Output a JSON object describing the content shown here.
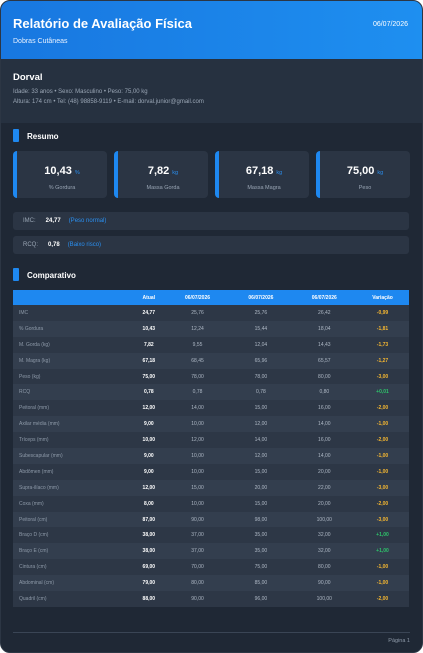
{
  "header": {
    "title": "Relatório de Avaliação Física",
    "date": "06/07/2026",
    "subtitle": "Dobras Cutâneas"
  },
  "patient": {
    "name": "Dorval",
    "line1": "Idade: 33 anos  •  Sexo: Masculino  •  Peso: 75,00 kg",
    "line2": "Altura: 174 cm  •  Tel: (48) 98858-9119  •  E-mail: dorval.junior@gmail.com"
  },
  "summary": {
    "title": "Resumo",
    "cards": [
      {
        "value": "10,43",
        "unit": "%",
        "label": "% Gordura"
      },
      {
        "value": "7,82",
        "unit": "kg",
        "label": "Massa Gorda"
      },
      {
        "value": "67,18",
        "unit": "kg",
        "label": "Massa Magra"
      },
      {
        "value": "75,00",
        "unit": "kg",
        "label": "Peso"
      }
    ],
    "indices": [
      {
        "label": "IMC:",
        "value": "24,77",
        "note": "(Peso normal)"
      },
      {
        "label": "RCQ:",
        "value": "0,78",
        "note": "(Baixo risco)"
      }
    ]
  },
  "table": {
    "title": "Comparativo",
    "header": [
      "",
      "Atual",
      "06/07/2026",
      "06/07/2026",
      "06/07/2026",
      "Variação"
    ],
    "rows": [
      [
        "IMC",
        "24,77",
        "25,76",
        "25,76",
        "26,42",
        "-0,99"
      ],
      [
        "% Gordura",
        "10,43",
        "12,24",
        "15,44",
        "18,04",
        "-1,81"
      ],
      [
        "M. Gorda (kg)",
        "7,82",
        "9,55",
        "12,04",
        "14,43",
        "-1,73"
      ],
      [
        "M. Magra (kg)",
        "67,18",
        "68,45",
        "65,96",
        "65,57",
        "-1,27"
      ],
      [
        "Peso (kg)",
        "75,00",
        "78,00",
        "78,00",
        "80,00",
        "-3,00"
      ],
      [
        "RCQ",
        "0,78",
        "0,78",
        "0,78",
        "0,80",
        "+0,01"
      ],
      [
        "Peitoral (mm)",
        "12,00",
        "14,00",
        "15,00",
        "16,00",
        "-2,00"
      ],
      [
        "Axilar média (mm)",
        "9,00",
        "10,00",
        "12,00",
        "14,00",
        "-1,00"
      ],
      [
        "Tríceps (mm)",
        "10,00",
        "12,00",
        "14,00",
        "16,00",
        "-2,00"
      ],
      [
        "Subescapular (mm)",
        "9,00",
        "10,00",
        "12,00",
        "14,00",
        "-1,00"
      ],
      [
        "Abdômen (mm)",
        "9,00",
        "10,00",
        "15,00",
        "20,00",
        "-1,00"
      ],
      [
        "Supra-ilíaco (mm)",
        "12,00",
        "15,00",
        "20,00",
        "22,00",
        "-3,00"
      ],
      [
        "Coxa (mm)",
        "8,00",
        "10,00",
        "15,00",
        "20,00",
        "-2,00"
      ],
      [
        "Peitoral (cm)",
        "87,00",
        "90,00",
        "98,00",
        "100,00",
        "-3,00"
      ],
      [
        "Braço D (cm)",
        "38,00",
        "37,00",
        "35,00",
        "32,00",
        "+1,00"
      ],
      [
        "Braço E (cm)",
        "38,00",
        "37,00",
        "35,00",
        "32,00",
        "+1,00"
      ],
      [
        "Cintura (cm)",
        "69,00",
        "70,00",
        "75,00",
        "80,00",
        "-1,00"
      ],
      [
        "Abdominal (cm)",
        "79,00",
        "80,00",
        "85,00",
        "90,00",
        "-1,00"
      ],
      [
        "Quadril (cm)",
        "88,00",
        "90,00",
        "96,00",
        "100,00",
        "-2,00"
      ]
    ]
  },
  "footer": {
    "page": "Página 1"
  }
}
